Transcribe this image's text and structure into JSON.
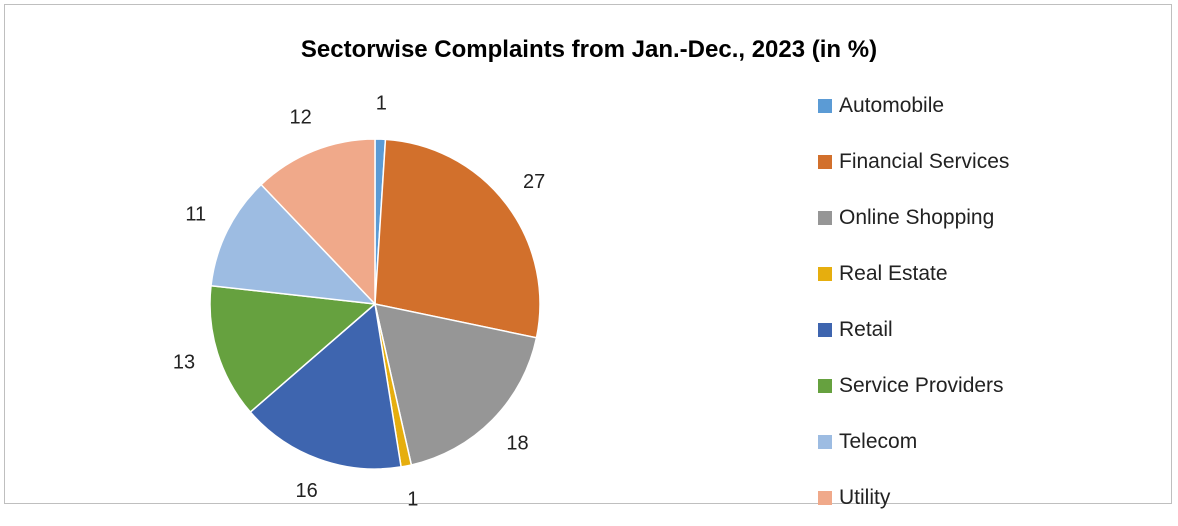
{
  "chart_data": {
    "type": "pie",
    "title": "Sectorwise Complaints from Jan.-Dec., 2023 (in %)",
    "legend_position": "right",
    "slices": [
      {
        "name": "Automobile",
        "value": 1,
        "color": "#5B9BD5"
      },
      {
        "name": "Financial Services",
        "value": 27,
        "color": "#D2702C"
      },
      {
        "name": "Online Shopping",
        "value": 18,
        "color": "#969696"
      },
      {
        "name": "Real Estate",
        "value": 1,
        "color": "#E6AE0E"
      },
      {
        "name": "Retail",
        "value": 16,
        "color": "#3E65AF"
      },
      {
        "name": "Service Providers",
        "value": 13,
        "color": "#66A13F"
      },
      {
        "name": "Telecom",
        "value": 11,
        "color": "#9DBCE2"
      },
      {
        "name": "Utility",
        "value": 12,
        "color": "#F0A98A"
      }
    ]
  }
}
